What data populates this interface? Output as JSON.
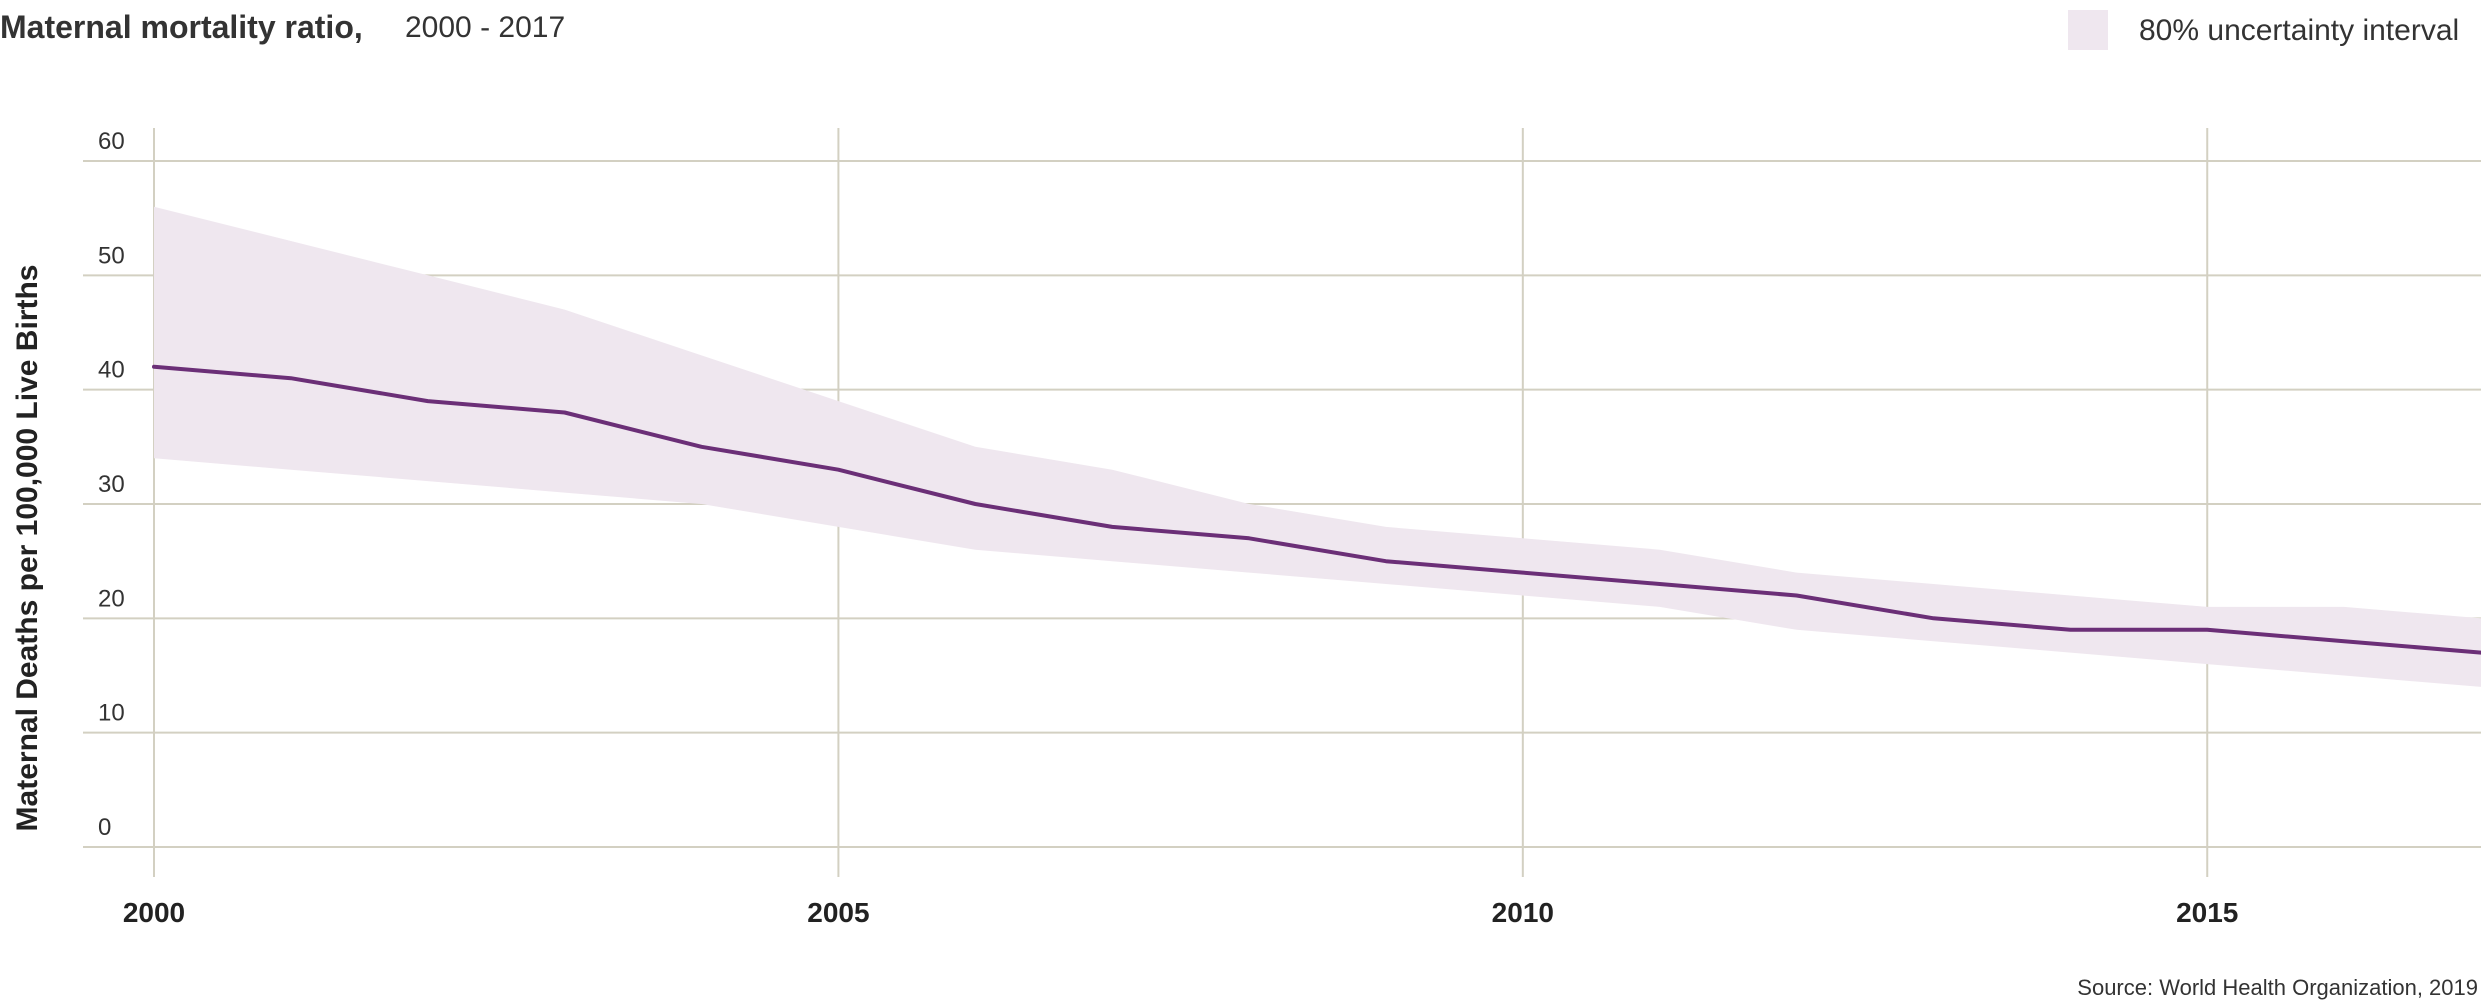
{
  "chart_data": {
    "type": "line",
    "title": "Maternal mortality ratio,",
    "subtitle": "2000 - 2017",
    "ylabel": "Maternal Deaths per 100,000 Live Births",
    "xlabel": "",
    "x": [
      2000,
      2001,
      2002,
      2003,
      2004,
      2005,
      2006,
      2007,
      2008,
      2009,
      2010,
      2011,
      2012,
      2013,
      2014,
      2015,
      2016,
      2017
    ],
    "xlim": [
      2000,
      2017
    ],
    "ylim": [
      0,
      60
    ],
    "x_ticks": [
      2000,
      2005,
      2010,
      2015
    ],
    "x_tick_labels": [
      "2000",
      "2005",
      "2010",
      "2015"
    ],
    "y_ticks": [
      0,
      10,
      20,
      30,
      40,
      50,
      60
    ],
    "y_tick_labels": [
      "0",
      "10",
      "20",
      "30",
      "40",
      "50",
      "60"
    ],
    "grid": true,
    "series": [
      {
        "values": [
          42,
          41,
          39,
          38,
          35,
          33,
          30,
          28,
          27,
          25,
          24,
          23,
          22,
          20,
          19,
          19,
          18,
          17
        ],
        "color": "#6b2f77"
      }
    ],
    "uncertainty_band": {
      "name": "80% uncertainty interval",
      "lower": [
        34,
        33,
        32,
        31,
        30,
        28,
        26,
        25,
        24,
        23,
        22,
        21,
        19,
        18,
        17,
        16,
        15,
        14
      ],
      "upper": [
        56,
        53,
        50,
        47,
        43,
        39,
        35,
        33,
        30,
        28,
        27,
        26,
        24,
        23,
        22,
        21,
        21,
        20
      ],
      "color": "#efe7ef"
    },
    "legend": {
      "label": "80% uncertainty interval",
      "placement": "top-right"
    },
    "grid_color": "#d3d0c2",
    "source": "Source: World Health Organization, 2019"
  }
}
